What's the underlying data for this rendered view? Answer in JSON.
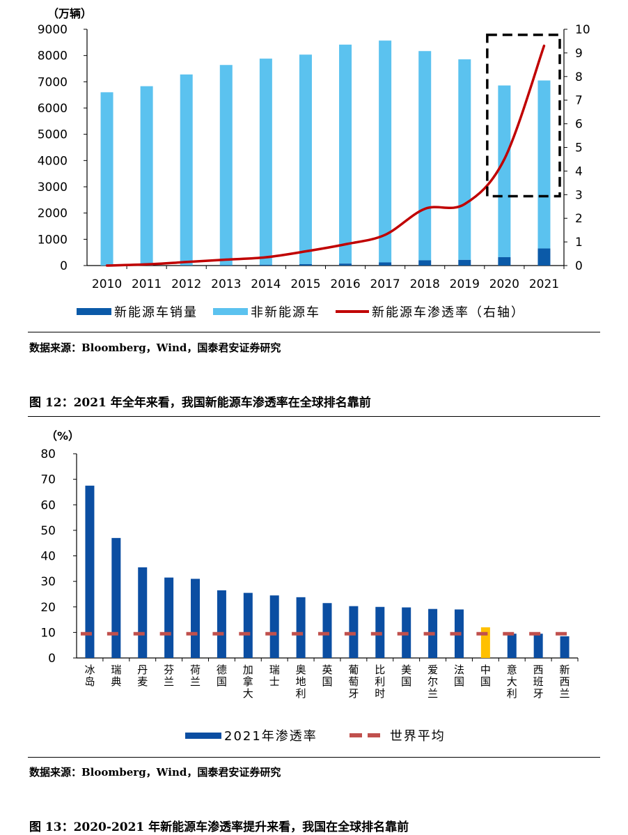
{
  "chart1": {
    "unit_label": "（万辆）",
    "chart_data": {
      "type": "bar",
      "categories": [
        "2010",
        "2011",
        "2012",
        "2013",
        "2014",
        "2015",
        "2016",
        "2017",
        "2018",
        "2019",
        "2020",
        "2021"
      ],
      "series": [
        {
          "name": "新能源车销量",
          "kind": "stacked-bar",
          "axis": "left",
          "values": [
            1,
            2,
            9,
            20,
            32,
            55,
            75,
            120,
            200,
            215,
            320,
            650
          ]
        },
        {
          "name": "非新能源车",
          "kind": "stacked-bar",
          "axis": "left",
          "values": [
            6600,
            6830,
            7270,
            7620,
            7850,
            7980,
            8340,
            8450,
            7970,
            7640,
            6540,
            6400
          ]
        },
        {
          "name": "新能源车渗透率（右轴）",
          "kind": "line",
          "axis": "right",
          "values": [
            0.0,
            0.05,
            0.15,
            0.25,
            0.35,
            0.6,
            0.9,
            1.3,
            2.4,
            2.6,
            4.5,
            9.3
          ]
        }
      ],
      "yleft": {
        "min": 0,
        "max": 9000,
        "ticks": [
          0,
          1000,
          2000,
          3000,
          4000,
          5000,
          6000,
          7000,
          8000,
          9000
        ]
      },
      "yright": {
        "min": 0,
        "max": 10,
        "ticks": [
          0,
          1,
          2,
          3,
          4,
          5,
          6,
          7,
          8,
          9,
          10
        ]
      },
      "highlight": {
        "from": "2020",
        "to": "2021"
      },
      "colors": {
        "nev": "#0b5aa8",
        "non_nev": "#5bc2ef",
        "line": "#c00000"
      }
    },
    "source": "数据来源：Bloomberg，Wind，国泰君安证券研究"
  },
  "caption12": "图 12：2021 年全年来看，我国新能源车渗透率在全球排名靠前",
  "chart2": {
    "unit_label": "（%）",
    "chart_data": {
      "type": "bar",
      "categories": [
        "冰岛",
        "瑞典",
        "丹麦",
        "芬兰",
        "荷兰",
        "德国",
        "加拿大",
        "瑞士",
        "奥地利",
        "英国",
        "葡萄牙",
        "比利时",
        "美国",
        "爱尔兰",
        "法国",
        "中国",
        "意大利",
        "西班牙",
        "新西兰"
      ],
      "series": [
        {
          "name": "2021年渗透率",
          "kind": "bar",
          "values": [
            67.5,
            47,
            35.5,
            31.5,
            31,
            26.5,
            25.5,
            24.5,
            23.8,
            21.5,
            20.3,
            20,
            19.8,
            19.2,
            19,
            12,
            9.5,
            9.5,
            8.5
          ]
        },
        {
          "name": "世界平均",
          "kind": "dashed-line",
          "value": 9.5
        }
      ],
      "ylim": [
        0,
        80
      ],
      "yticks": [
        0,
        10,
        20,
        30,
        40,
        50,
        60,
        70,
        80
      ],
      "highlight_category": "中国",
      "colors": {
        "bar": "#0b4ea2",
        "highlight": "#ffc000",
        "avg": "#c0504d"
      }
    },
    "source": "数据来源：Bloomberg，Wind，国泰君安证券研究"
  },
  "caption13": "图 13：2020-2021 年新能源车渗透率提升来看，我国在全球排名靠前"
}
